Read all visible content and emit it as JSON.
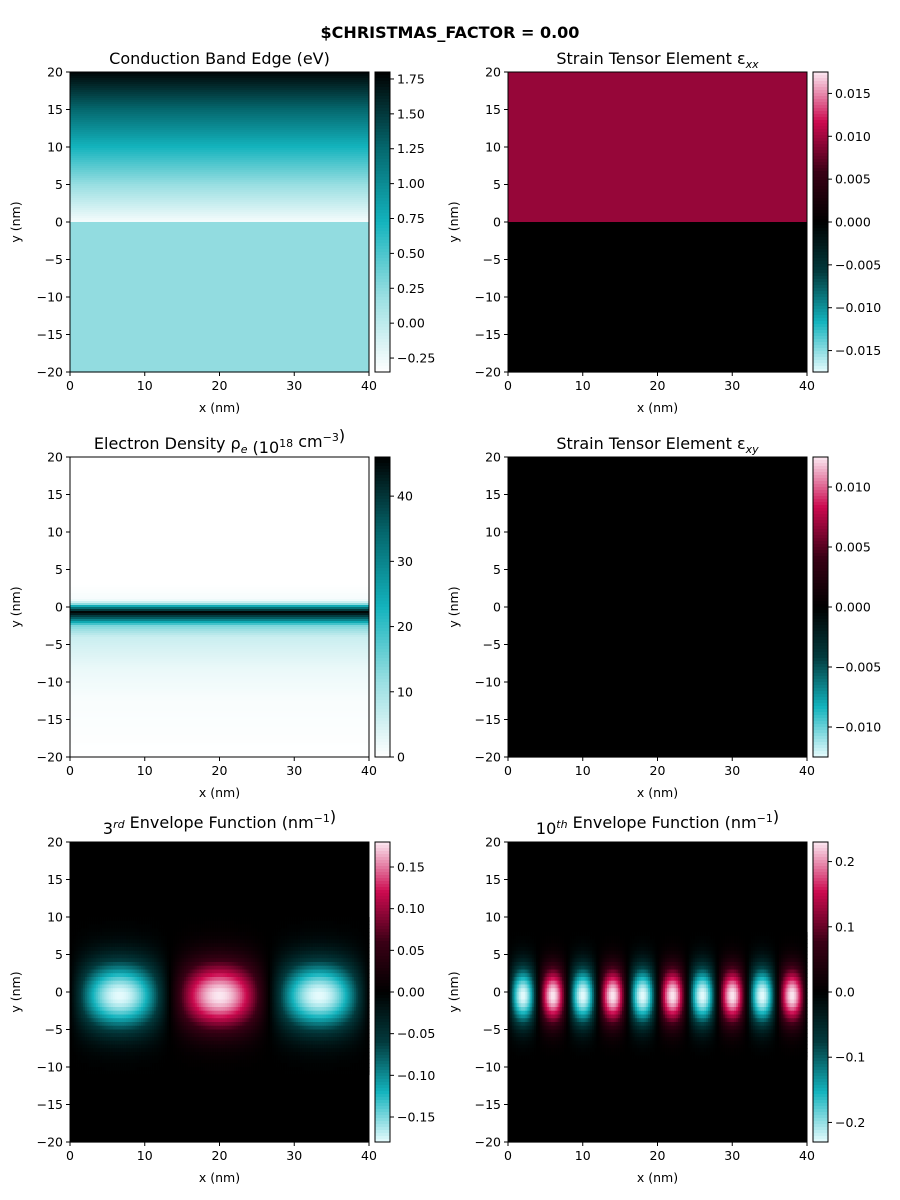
{
  "suptitle": "$CHRISTMAS_FACTOR = 0.00",
  "colormaps": {
    "cyan_sequential": [
      "#ffffff",
      "#9adfe2",
      "#13b3bd",
      "#04666c",
      "#000000"
    ],
    "cyan_magenta_diverging": [
      "#e6fbfd",
      "#13b3bd",
      "#023a3d",
      "#000000",
      "#3a0015",
      "#cc0a4f",
      "#fbe9f2"
    ]
  },
  "chart_data": [
    {
      "type": "heatmap",
      "title": "Conduction Band Edge (eV)",
      "xlabel": "x (nm)",
      "ylabel": "y (nm)",
      "xlim": [
        0,
        40
      ],
      "ylim": [
        -20,
        20
      ],
      "xticks": [
        "0",
        "10",
        "20",
        "30",
        "40"
      ],
      "yticks": [
        "20",
        "15",
        "10",
        "5",
        "0",
        "−5",
        "−10",
        "−15",
        "−20"
      ],
      "colormap": "cyan_sequential",
      "clim": [
        -0.35,
        1.8
      ],
      "colorbar_ticks": [
        "1.75",
        "1.50",
        "1.25",
        "1.00",
        "0.75",
        "0.50",
        "0.25",
        "0.00",
        "−0.25"
      ],
      "colorbar_tick_values": [
        1.75,
        1.5,
        1.25,
        1.0,
        0.75,
        0.5,
        0.25,
        0.0,
        -0.25
      ],
      "field": "y < 0 : 0.22 ; y >= 0 : -0.35 + 0.107*y",
      "profile_y": [
        -20,
        -0.1,
        0,
        5,
        10,
        15,
        20
      ],
      "profile_value": [
        0.22,
        0.22,
        -0.3,
        0.2,
        0.72,
        1.25,
        1.78
      ]
    },
    {
      "type": "heatmap",
      "title": "Strain Tensor Element ε",
      "title_subscript": "xx",
      "xlabel": "x (nm)",
      "ylabel": "y (nm)",
      "xlim": [
        0,
        40
      ],
      "ylim": [
        -20,
        20
      ],
      "xticks": [
        "0",
        "10",
        "20",
        "30",
        "40"
      ],
      "yticks": [
        "20",
        "15",
        "10",
        "5",
        "0",
        "−5",
        "−10",
        "−15",
        "−20"
      ],
      "colormap": "cyan_magenta_diverging",
      "clim": [
        -0.0175,
        0.0175
      ],
      "colorbar_ticks": [
        "0.015",
        "0.010",
        "0.005",
        "0.000",
        "−0.005",
        "−0.010",
        "−0.015"
      ],
      "colorbar_tick_values": [
        0.015,
        0.01,
        0.005,
        0.0,
        -0.005,
        -0.01,
        -0.015
      ],
      "profile_y": [
        -20,
        -0.01,
        0,
        20
      ],
      "profile_value": [
        0.0,
        0.0,
        0.0095,
        0.0095
      ]
    },
    {
      "type": "heatmap",
      "title": "Electron Density ρ",
      "title_subscript": "e",
      "title_suffix": " (10",
      "title_sup": "18",
      "title_suffix2": " cm",
      "title_sup2": "−3",
      "title_end": ")",
      "xlabel": "x (nm)",
      "ylabel": "y (nm)",
      "xlim": [
        0,
        40
      ],
      "ylim": [
        -20,
        20
      ],
      "xticks": [
        "0",
        "10",
        "20",
        "30",
        "40"
      ],
      "yticks": [
        "20",
        "15",
        "10",
        "5",
        "0",
        "−5",
        "−10",
        "−15",
        "−20"
      ],
      "colormap": "cyan_sequential",
      "clim": [
        0,
        46
      ],
      "colorbar_ticks": [
        "40",
        "30",
        "20",
        "10",
        "0"
      ],
      "colorbar_tick_values": [
        40,
        30,
        20,
        10,
        0
      ],
      "profile_y": [
        -20,
        -12,
        -8,
        -4,
        -2.5,
        -1.5,
        -0.7,
        0,
        0.5,
        1,
        3,
        20
      ],
      "profile_value": [
        0,
        0.8,
        2.5,
        6,
        14,
        35,
        46,
        30,
        8,
        1,
        0,
        0
      ]
    },
    {
      "type": "heatmap",
      "title": "Strain Tensor Element ε",
      "title_subscript": "xy",
      "xlabel": "x (nm)",
      "ylabel": "y (nm)",
      "xlim": [
        0,
        40
      ],
      "ylim": [
        -20,
        20
      ],
      "xticks": [
        "0",
        "10",
        "20",
        "30",
        "40"
      ],
      "yticks": [
        "20",
        "15",
        "10",
        "5",
        "0",
        "−5",
        "−10",
        "−15",
        "−20"
      ],
      "colormap": "cyan_magenta_diverging",
      "clim": [
        -0.0125,
        0.0125
      ],
      "colorbar_ticks": [
        "0.010",
        "0.005",
        "0.000",
        "−0.005",
        "−0.010"
      ],
      "colorbar_tick_values": [
        0.01,
        0.005,
        0.0,
        -0.005,
        -0.01
      ],
      "profile_y": [
        -20,
        20
      ],
      "profile_value": [
        0.0,
        0.0
      ]
    },
    {
      "type": "heatmap",
      "title_prefix": "3",
      "title_sup": "rd",
      "title": " Envelope Function (nm",
      "title_sup2": "−1",
      "title_end": ")",
      "xlabel": "x (nm)",
      "ylabel": "y (nm)",
      "xlim": [
        0,
        40
      ],
      "ylim": [
        -20,
        20
      ],
      "xticks": [
        "0",
        "10",
        "20",
        "30",
        "40"
      ],
      "yticks": [
        "20",
        "15",
        "10",
        "5",
        "0",
        "−5",
        "−10",
        "−15",
        "−20"
      ],
      "colormap": "cyan_magenta_diverging",
      "clim": [
        -0.18,
        0.18
      ],
      "colorbar_ticks": [
        "0.15",
        "0.10",
        "0.05",
        "0.00",
        "−0.05",
        "−0.10",
        "−0.15"
      ],
      "colorbar_tick_values": [
        0.15,
        0.1,
        0.05,
        0.0,
        -0.05,
        -0.1,
        -0.15
      ],
      "field": "A*sin(n*pi*x/L)*g(y)",
      "mode_n": 3,
      "amplitude": 0.18,
      "sign": -1,
      "y_center": -0.5,
      "y_width": 3.2
    },
    {
      "type": "heatmap",
      "title_prefix": "10",
      "title_sup": "th",
      "title": " Envelope Function (nm",
      "title_sup2": "−1",
      "title_end": ")",
      "xlabel": "x (nm)",
      "ylabel": "y (nm)",
      "xlim": [
        0,
        40
      ],
      "ylim": [
        -20,
        20
      ],
      "xticks": [
        "0",
        "10",
        "20",
        "30",
        "40"
      ],
      "yticks": [
        "20",
        "15",
        "10",
        "5",
        "0",
        "−5",
        "−10",
        "−15",
        "−20"
      ],
      "colormap": "cyan_magenta_diverging",
      "clim": [
        -0.23,
        0.23
      ],
      "colorbar_ticks": [
        "0.2",
        "0.1",
        "0.0",
        "−0.1",
        "−0.2"
      ],
      "colorbar_tick_values": [
        0.2,
        0.1,
        0.0,
        -0.1,
        -0.2
      ],
      "field": "A*sin(n*pi*x/L)*g(y)",
      "mode_n": 10,
      "amplitude": 0.23,
      "sign": -1,
      "y_center": -0.5,
      "y_width": 2.6
    }
  ]
}
